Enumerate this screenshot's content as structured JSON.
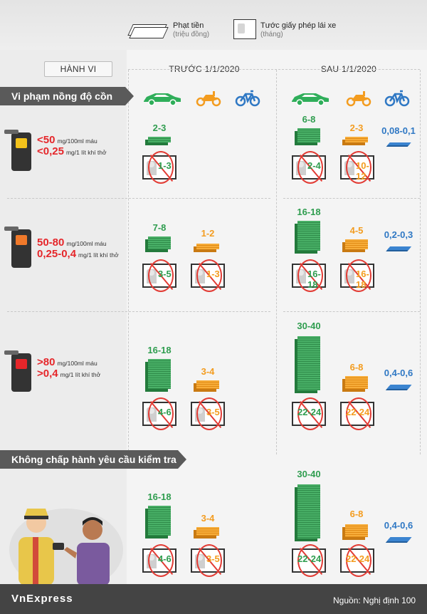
{
  "legend": {
    "fine_title": "Phạt tiền",
    "fine_sub": "(triệu đồng)",
    "license_title": "Tước giấy phép lái xe",
    "license_sub": "(tháng)"
  },
  "headers": {
    "behavior": "HÀNH VI",
    "before": "TRƯỚC 1/1/2020",
    "after": "SAU 1/1/2020"
  },
  "sections": {
    "alcohol": "Vi phạm nồng độ cồn",
    "refuse": "Không chấp hành yêu cầu kiểm tra"
  },
  "levels": [
    {
      "sym": "<",
      "blood": "50",
      "blood_unit": "mg/100ml máu",
      "breath_sym": "<",
      "breath": "0,25",
      "breath_unit": "mg/1 lít khí thở",
      "screen_color": "#f3c21b"
    },
    {
      "sym": "",
      "blood": "50-80",
      "blood_unit": "mg/100ml máu",
      "breath_sym": "",
      "breath": "0,25-0,4",
      "breath_unit": "mg/1 lít khí thở",
      "screen_color": "#f0792a"
    },
    {
      "sym": ">",
      "blood": "80",
      "blood_unit": "mg/100ml máu",
      "breath_sym": ">",
      "breath": "0,4",
      "breath_unit": "mg/1 lít khí thở",
      "screen_color": "#e5262a"
    }
  ],
  "rows": [
    {
      "before": {
        "car_fine": "2-3",
        "car_license": "1-3",
        "moto_fine": "",
        "moto_license": ""
      },
      "after": {
        "car_fine": "6-8",
        "car_license": "2-4",
        "moto_fine": "2-3",
        "moto_license": "10-12",
        "bike_fine": "0,08-0,1"
      }
    },
    {
      "before": {
        "car_fine": "7-8",
        "car_license": "3-5",
        "moto_fine": "1-2",
        "moto_license": "1-3"
      },
      "after": {
        "car_fine": "16-18",
        "car_license": "16-18",
        "moto_fine": "4-5",
        "moto_license": "16-18",
        "bike_fine": "0,2-0,3"
      }
    },
    {
      "before": {
        "car_fine": "16-18",
        "car_license": "4-6",
        "moto_fine": "3-4",
        "moto_license": "3-5"
      },
      "after": {
        "car_fine": "30-40",
        "car_license": "22-24",
        "moto_fine": "6-8",
        "moto_license": "22-24",
        "bike_fine": "0,4-0,6"
      }
    },
    {
      "before": {
        "car_fine": "16-18",
        "car_license": "4-6",
        "moto_fine": "3-4",
        "moto_license": "3-5"
      },
      "after": {
        "car_fine": "30-40",
        "car_license": "22-24",
        "moto_fine": "6-8",
        "moto_license": "22-24",
        "bike_fine": "0,4-0,6"
      }
    }
  ],
  "footer": {
    "brand": "VnExpress",
    "source": "Nguồn: Nghị định 100"
  }
}
